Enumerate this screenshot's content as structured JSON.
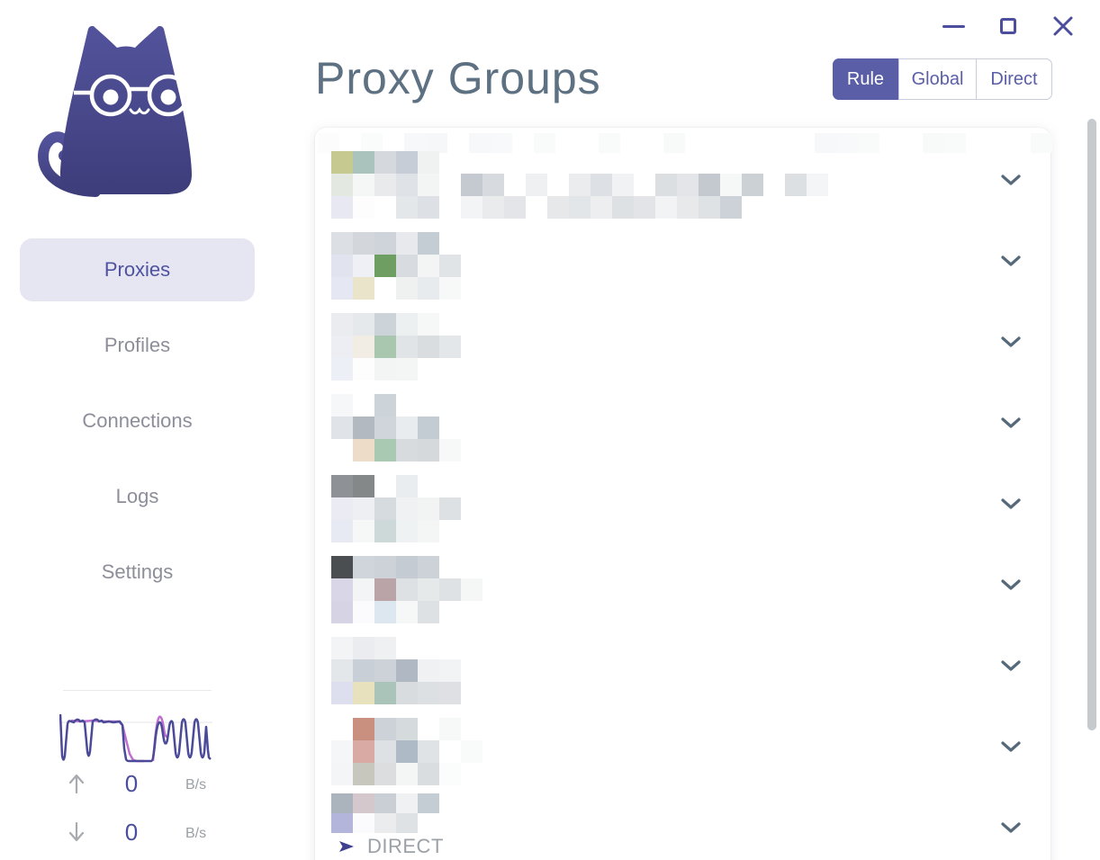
{
  "titlebar": {
    "icons": [
      {
        "name": "minimize"
      },
      {
        "name": "maximize"
      },
      {
        "name": "close"
      }
    ]
  },
  "sidebar": {
    "logo_icon": "clash-cat-logo",
    "items": [
      {
        "label": "Proxies",
        "active": true
      },
      {
        "label": "Profiles",
        "active": false
      },
      {
        "label": "Connections",
        "active": false
      },
      {
        "label": "Logs",
        "active": false
      },
      {
        "label": "Settings",
        "active": false
      }
    ],
    "traffic": {
      "upload": {
        "value": "0",
        "unit": "B/s"
      },
      "download": {
        "value": "0",
        "unit": "B/s"
      }
    }
  },
  "main": {
    "title": "Proxy Groups",
    "modes": [
      {
        "label": "Rule",
        "active": true
      },
      {
        "label": "Global",
        "active": false
      },
      {
        "label": "Direct",
        "active": false
      }
    ],
    "header_strip": [
      "#fcfcfd",
      "",
      "#fafbfb",
      "",
      "#f7f8f9",
      "#f6f7f8",
      "",
      "#f7f8f9",
      "#f8f9fa",
      "",
      "#f9fafa",
      "",
      "",
      "#f9fafa",
      "",
      "",
      "#f8f9f9",
      "",
      "",
      "",
      "",
      "",
      "",
      "#f7f8f9",
      "#f8f9fa",
      "#f9fafa",
      "",
      "",
      "#f8f9f9",
      "#f9fafa",
      "",
      "",
      "",
      "#f9fafa"
    ],
    "groups": [
      {
        "redacted": true,
        "mosaic": [
          [
            "#c6ca90",
            "#aac3bd",
            "#d5d9de",
            "#c7cdd6",
            "#f0f1f1"
          ],
          [
            "#e3e8e1",
            "#f5f6f6",
            "#e9eaec",
            "#dfe3e8",
            "#f3f4f4",
            "",
            "#c5cad0",
            "#d7dade",
            "",
            "#eef0f1",
            "",
            "#eaecee",
            "#dde0e4",
            "#f1f2f3",
            "",
            "#dcdfe2",
            "#e3e5e8",
            "#c3c9cf",
            "#f6f7f7",
            "#ccd1d6",
            "",
            "#dde0e3",
            "#f4f5f6"
          ],
          [
            "#e8e8f3",
            "#fdfdfd",
            "#ffffff",
            "#e4e7ea",
            "#dde0e4",
            "",
            "#f3f4f5",
            "#e9ebed",
            "#e3e5e8",
            "",
            "#e6e8ea",
            "#e3e6e9",
            "#eceeef",
            "#dee1e4",
            "#e2e4e7",
            "#f2f3f4",
            "#e7e9eb",
            "#dfe2e5",
            "#ccd2d7"
          ]
        ]
      },
      {
        "redacted": true,
        "mosaic": [
          [
            "#dcdfe3",
            "#d3d7dc",
            "#ced4da",
            "#e7e9ec",
            "#c4ccd4"
          ],
          [
            "#e1e3ef",
            "#eef0f5",
            "#6f9e63",
            "#d8dce0",
            "#f2f5f3",
            "#e1e4e7"
          ],
          [
            "#e5e7f3",
            "#e9e4ca",
            "#ffffff",
            "#eff1f1",
            "#e8ebed",
            "#f7f9f9"
          ]
        ]
      },
      {
        "redacted": true,
        "mosaic": [
          [
            "#eaecef",
            "#e6e9ec",
            "#ccd3d9",
            "#edf0f0",
            "#f6f8f8"
          ],
          [
            "#ededf4",
            "#f1ece4",
            "#a9c7ae",
            "#e0e4e6",
            "#d9dde0",
            "#e4e7e9"
          ],
          [
            "#edeff7",
            "#fdfdfd",
            "#f3f5f5",
            "#f4f6f6"
          ]
        ]
      },
      {
        "redacted": true,
        "mosaic": [
          [
            "#f5f7f9",
            "",
            "#ccd3d9"
          ],
          [
            "#e0e3e7",
            "#b3b9c0",
            "#cfd5db",
            "#e9ecee",
            "#c3cbd3"
          ],
          [
            "#ffffff",
            "#edddc8",
            "#aac9b3",
            "#d7dbde",
            "#d5d9dc",
            "#f7f9f9"
          ]
        ]
      },
      {
        "redacted": true,
        "mosaic": [
          [
            "#8e9296",
            "#858889",
            "",
            "#e9edf0"
          ],
          [
            "#eaebf3",
            "#edeff3",
            "#d6dbdf",
            "#eff1f3",
            "#f2f4f4",
            "#dee1e4"
          ],
          [
            "#e7e9f3",
            "#f6f8f8",
            "#cdd9d9",
            "#eff2f2",
            "#f3f6f4"
          ]
        ]
      },
      {
        "redacted": true,
        "mosaic": [
          [
            "#4b4e51",
            "#cfd5db",
            "#ccd2d8",
            "#c4cbd3",
            "#cdd2d8"
          ],
          [
            "#d9d6e7",
            "#f3f4f6",
            "#baa4a7",
            "#dee1e4",
            "#e6e9ea",
            "#dfe2e5",
            "#f5f7f7"
          ],
          [
            "#d6d3e5",
            "#fbfbfd",
            "#dde7ef",
            "#f6f8f8",
            "#dee1e3"
          ]
        ]
      },
      {
        "redacted": true,
        "mosaic": [
          [
            "#f2f4f6",
            "#eaecef",
            "#eef0f2"
          ],
          [
            "#e4e7ea",
            "#c9cfd6",
            "#ccd2d7",
            "#afb8c3",
            "#eff1f2",
            "#f1f3f4"
          ],
          [
            "#dddfef",
            "#e7e1be",
            "#aac4b9",
            "#d8dcdf",
            "#dde0e3",
            "#dee0e3"
          ]
        ]
      },
      {
        "redacted": true,
        "mosaic": [
          [
            "",
            "#c9907f",
            "#ccd2d7",
            "#d5dadd",
            "",
            "#f7f9f9"
          ],
          [
            "#f4f6f7",
            "#d9a9a4",
            "#dee1e4",
            "#aebac5",
            "#e0e3e6",
            "",
            "#f9fafa"
          ],
          [
            "#f3f5f6",
            "#c7c7be",
            "#dbdddf",
            "#f4f5f5",
            "#d9dddf",
            "#fbfcfc"
          ]
        ]
      },
      {
        "redacted": true,
        "selected_proxy": "DIRECT",
        "mosaic": [
          [
            "#abb4bc",
            "#d4c8cc",
            "#c9cfd5",
            "#eff1f3",
            "#c4ccd4"
          ],
          [
            "#b4b5da",
            "#fbfbfd",
            "#eaecee",
            "#dfe2e5"
          ]
        ]
      }
    ]
  },
  "colors": {
    "accent": "#5a5ea6",
    "accent_text": "#4f52a0",
    "title_text": "#5d7183",
    "chevron": "#56697b",
    "muted_text": "#9ba1a7",
    "nav_text": "#8d8e99",
    "nav_active_bg": "#e6e6f2",
    "logo_gradient_top": "#53539c",
    "logo_gradient_bottom": "#3d3d7b",
    "sparkline_primary": "#4a4a99",
    "sparkline_secondary": "#bf6fd0",
    "scrollbar": "#c7cacd"
  }
}
